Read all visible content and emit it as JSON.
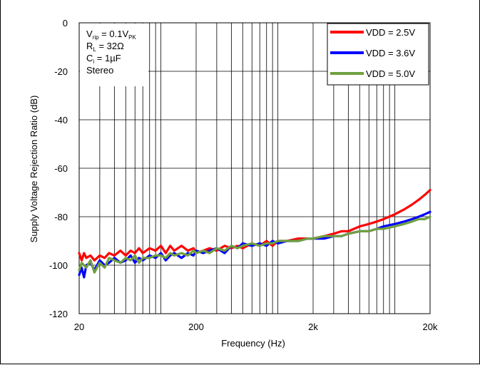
{
  "chart_data": {
    "type": "line",
    "xlabel": "Frequency (Hz)",
    "ylabel": "Supply Voltage Rejection Ratio (dB)",
    "xscale": "log",
    "xlim": [
      20,
      20000
    ],
    "ylim": [
      -120,
      0
    ],
    "xticks": [
      {
        "value": 20,
        "label": "20"
      },
      {
        "value": 200,
        "label": "200"
      },
      {
        "value": 2000,
        "label": "2k"
      },
      {
        "value": 20000,
        "label": "20k"
      }
    ],
    "yticks": [
      {
        "value": 0,
        "label": "0"
      },
      {
        "value": -20,
        "label": "-20"
      },
      {
        "value": -40,
        "label": "-40"
      },
      {
        "value": -60,
        "label": "-60"
      },
      {
        "value": -80,
        "label": "-80"
      },
      {
        "value": -100,
        "label": "-100"
      },
      {
        "value": -120,
        "label": "-120"
      }
    ],
    "grid": true,
    "legend_position": "top-right",
    "conditions": [
      {
        "main": "V",
        "sub": "rip",
        "rest": " = 0.1V",
        "sub2": "PK"
      },
      {
        "main": "R",
        "sub": "L",
        "rest": " = 32Ω",
        "sub2": ""
      },
      {
        "main": "C",
        "sub": "i",
        "rest": " = 1µF",
        "sub2": ""
      },
      {
        "main": "Stereo",
        "sub": "",
        "rest": "",
        "sub2": ""
      }
    ],
    "series": [
      {
        "name": "VDD = 2.5V",
        "color": "#ff0000",
        "x": [
          20,
          21,
          22,
          23,
          25,
          27,
          30,
          33,
          36,
          40,
          45,
          50,
          55,
          60,
          65,
          70,
          80,
          90,
          100,
          110,
          120,
          130,
          150,
          170,
          190,
          200,
          230,
          260,
          300,
          350,
          400,
          450,
          500,
          600,
          700,
          800,
          900,
          1000,
          1200,
          1500,
          1800,
          2000,
          2500,
          3000,
          3500,
          4000,
          5000,
          6000,
          7000,
          8000,
          10000,
          12000,
          14000,
          16000,
          18000,
          20000
        ],
        "y": [
          -95,
          -98,
          -95,
          -97,
          -96,
          -98,
          -96,
          -97,
          -95,
          -96,
          -94,
          -96,
          -94,
          -95,
          -93,
          -95,
          -93,
          -94,
          -92,
          -95,
          -92,
          -94,
          -92,
          -94,
          -93,
          -95,
          -94,
          -93,
          -94,
          -92,
          -93,
          -92,
          -93,
          -91,
          -92,
          -90,
          -92,
          -90,
          -90,
          -89,
          -89,
          -89,
          -88,
          -87,
          -86,
          -86,
          -84,
          -83,
          -82,
          -81,
          -79,
          -77,
          -75,
          -73,
          -71,
          -69
        ]
      },
      {
        "name": "VDD = 3.6V",
        "color": "#0000ff",
        "x": [
          20,
          21,
          22,
          23,
          25,
          27,
          30,
          33,
          36,
          40,
          45,
          50,
          55,
          60,
          65,
          70,
          80,
          90,
          100,
          110,
          120,
          130,
          150,
          170,
          190,
          200,
          230,
          260,
          300,
          350,
          400,
          450,
          500,
          600,
          700,
          800,
          900,
          1000,
          1200,
          1500,
          1800,
          2000,
          2500,
          3000,
          3500,
          4000,
          5000,
          6000,
          7000,
          8000,
          10000,
          12000,
          14000,
          16000,
          18000,
          20000
        ],
        "y": [
          -104,
          -101,
          -105,
          -100,
          -99,
          -102,
          -98,
          -100,
          -99,
          -97,
          -99,
          -98,
          -96,
          -99,
          -97,
          -98,
          -96,
          -97,
          -95,
          -98,
          -96,
          -95,
          -97,
          -95,
          -96,
          -94,
          -95,
          -94,
          -93,
          -95,
          -92,
          -93,
          -91,
          -92,
          -91,
          -92,
          -90,
          -91,
          -90,
          -90,
          -89,
          -89,
          -89,
          -88,
          -88,
          -87,
          -86,
          -86,
          -85,
          -84,
          -83,
          -82,
          -81,
          -80,
          -79,
          -78
        ]
      },
      {
        "name": "VDD = 5.0V",
        "color": "#70a040",
        "x": [
          20,
          21,
          22,
          23,
          25,
          27,
          30,
          33,
          36,
          40,
          45,
          50,
          55,
          60,
          65,
          70,
          80,
          90,
          100,
          110,
          120,
          130,
          150,
          170,
          190,
          200,
          230,
          260,
          300,
          350,
          400,
          450,
          500,
          600,
          700,
          800,
          900,
          1000,
          1200,
          1500,
          1800,
          2000,
          2500,
          3000,
          3500,
          4000,
          5000,
          6000,
          7000,
          8000,
          10000,
          12000,
          14000,
          16000,
          18000,
          20000
        ],
        "y": [
          -102,
          -99,
          -100,
          -101,
          -98,
          -103,
          -99,
          -101,
          -97,
          -98,
          -99,
          -97,
          -98,
          -96,
          -99,
          -97,
          -97,
          -96,
          -96,
          -97,
          -95,
          -96,
          -95,
          -96,
          -94,
          -95,
          -94,
          -95,
          -93,
          -94,
          -92,
          -93,
          -92,
          -91,
          -92,
          -91,
          -91,
          -90,
          -90,
          -90,
          -89,
          -89,
          -88,
          -88,
          -88,
          -87,
          -86,
          -86,
          -85,
          -85,
          -84,
          -83,
          -82,
          -81,
          -81,
          -80
        ]
      }
    ]
  }
}
